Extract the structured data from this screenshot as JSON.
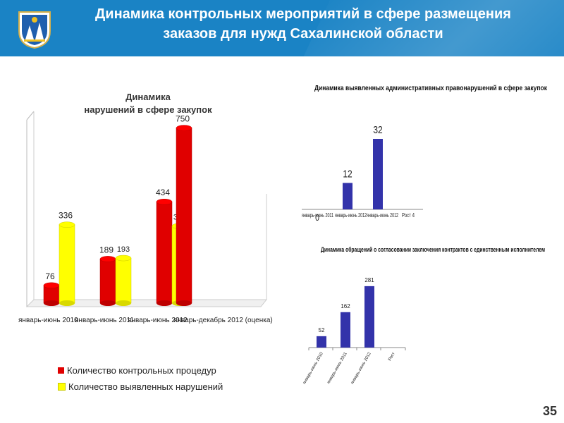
{
  "header": {
    "title_line1": "Динамика контрольных мероприятий в сфере размещения",
    "title_line2": "заказов для нужд Сахалинской области",
    "bg_color": "#1a83c5"
  },
  "page_number": "35",
  "chart_data": [
    {
      "type": "bar",
      "title_line1": "Динамика",
      "title_line2": "нарушений в сфере закупок",
      "categories": [
        "январь-июнь 2010",
        "январь-июнь 2011",
        "январь-июнь 2012",
        "январь-декабрь 2012 (оценка)"
      ],
      "series": [
        {
          "name": "Количество контрольных процедур",
          "color": "#e00000",
          "values": [
            76,
            189,
            434,
            750
          ]
        },
        {
          "name": "Количество выявленных нарушений",
          "color": "#ffff00",
          "values": [
            336,
            193,
            330,
            null
          ]
        }
      ],
      "ylim": [
        0,
        800
      ],
      "legend_position": "bottom"
    },
    {
      "type": "bar",
      "title": "Динамика выявленных административных правонарушений в сфере закупок",
      "categories": [
        "январь-июнь 2011",
        "январь-июнь 2012",
        "январь-июнь 2012",
        "Рост 4"
      ],
      "values": [
        0,
        12,
        32,
        null
      ],
      "color": "#3333aa",
      "ylim": [
        0,
        40
      ]
    },
    {
      "type": "bar",
      "title": "Динамика обращений о согласовании заключения контрактов с единственным исполнителем",
      "categories": [
        "январь-июнь 2010",
        "январь-июнь 2011",
        "январь-июнь 2012",
        "Рост"
      ],
      "values": [
        52,
        162,
        281,
        null
      ],
      "color": "#3333aa",
      "ylim": [
        0,
        300
      ]
    }
  ]
}
